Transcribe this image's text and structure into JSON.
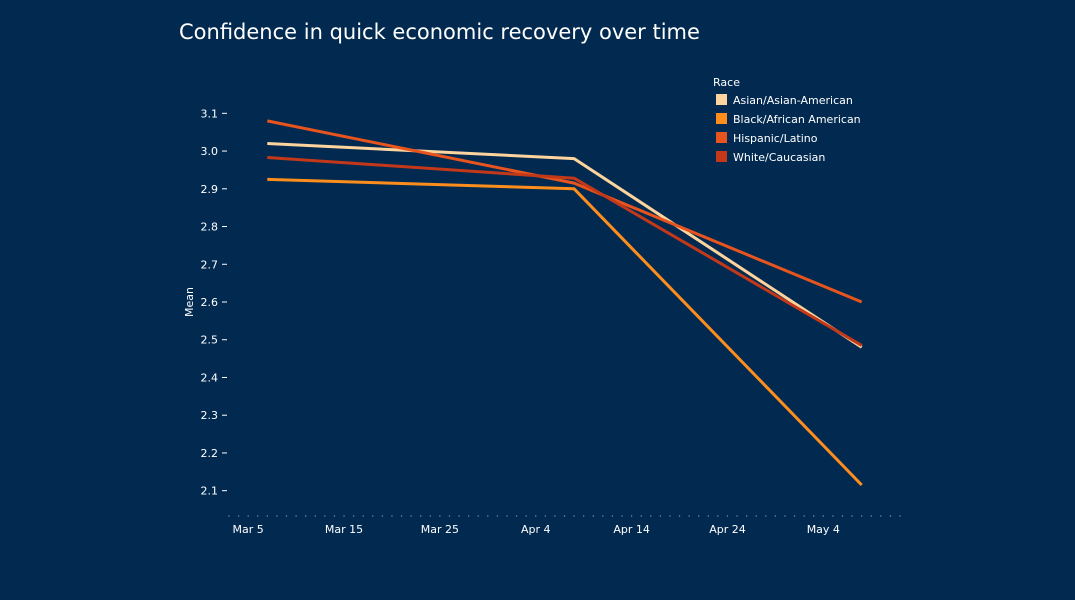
{
  "chart_data": {
    "type": "line",
    "title": "Confidence in quick economic recovery over time",
    "xlabel": "",
    "ylabel": "Mean",
    "x": [
      "2020-03-07",
      "2020-04-08",
      "2020-05-08"
    ],
    "xticks": [
      "Mar 5",
      "Mar 15",
      "Mar 25",
      "Apr 4",
      "Apr 14",
      "Apr 24",
      "May 4"
    ],
    "xtick_dates": [
      "2020-03-05",
      "2020-03-15",
      "2020-03-25",
      "2020-04-04",
      "2020-04-14",
      "2020-04-24",
      "2020-05-04"
    ],
    "xlim": [
      "2020-03-03",
      "2020-05-12"
    ],
    "yticks": [
      2.1,
      2.2,
      2.3,
      2.4,
      2.5,
      2.6,
      2.7,
      2.8,
      2.9,
      3.0,
      3.1
    ],
    "ylim": [
      2.07,
      3.13
    ],
    "legend_title": "Race",
    "legend_position": "top-right",
    "grid": false,
    "series": [
      {
        "name": "Asian/Asian-American",
        "color": "#fdd49e",
        "values": [
          3.02,
          2.98,
          2.48
        ]
      },
      {
        "name": "Black/African American",
        "color": "#fd8d1c",
        "values": [
          2.925,
          2.9,
          2.115
        ]
      },
      {
        "name": "Hispanic/Latino",
        "color": "#e8541e",
        "values": [
          3.08,
          2.915,
          2.6
        ]
      },
      {
        "name": "White/Caucasian",
        "color": "#c4381a",
        "values": [
          2.983,
          2.928,
          2.485
        ]
      }
    ]
  }
}
